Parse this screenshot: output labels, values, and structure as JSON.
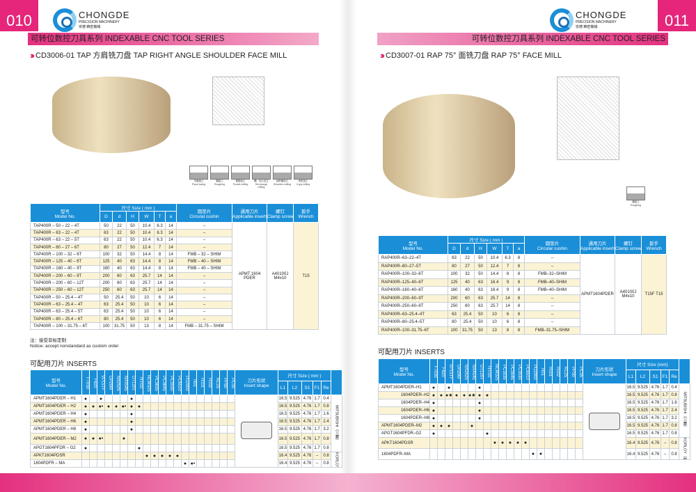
{
  "pages": [
    {
      "page_number": "010",
      "brand": "CHONGDE",
      "brand_sub": "PRECISION MACHINERY",
      "brand_cn": "崇德 精密機械",
      "series_title": "可转位数控刀具系列 INDEXABLE CNC TOOL SERIES",
      "product_title": "CD3006-01  TAP 方肩铣刀盘  TAP RIGHT ANGLE SHOULDER FACE MILL",
      "machining_icons": [
        {
          "cn": "平面加工",
          "en": "Plane facing"
        },
        {
          "cn": "粗加工",
          "en": "Roughing"
        },
        {
          "cn": "型腔加工",
          "en": "Pocket milling"
        },
        {
          "cn": "槽、切入加工",
          "en": "Slot plunge milling"
        },
        {
          "cn": "台阶面加工",
          "en": "Shoulder milling"
        },
        {
          "cn": "仿形加工",
          "en": "Copy milling"
        }
      ],
      "main_table": {
        "headers": {
          "model_cn": "型号",
          "model_en": "Model No.",
          "size": "尺寸 Size ( mm )",
          "cols": [
            "D",
            "d",
            "H",
            "W",
            "T",
            "a"
          ],
          "cushion_cn": "圆垫片",
          "cushion_en": "Circulal cushin",
          "inserts_cn": "通用刀片",
          "inserts_en": "Applicable inserts",
          "screw_cn": "螺钉",
          "screw_en": "Clamp screw",
          "wrench_cn": "扳手",
          "wrench_en": "Wrench"
        },
        "rows": [
          [
            "TAP400R – 50 – 22 – 4T",
            "50",
            "22",
            "50",
            "10.4",
            "6.3",
            "14",
            "–"
          ],
          [
            "TAP400R – 63 – 22 – 4T",
            "63",
            "22",
            "50",
            "10.4",
            "6.3",
            "14",
            "–"
          ],
          [
            "TAP400R – 63 – 22 – 5T",
            "63",
            "22",
            "50",
            "10.4",
            "6.3",
            "14",
            "–"
          ],
          [
            "TAP400R – 80 – 27 – 6T",
            "80",
            "27",
            "50",
            "12.4",
            "7",
            "14",
            "–"
          ],
          [
            "TAP400R – 100 – 32 – 6T",
            "100",
            "32",
            "50",
            "14.4",
            "8",
            "14",
            "FMB – 32 – SHIM"
          ],
          [
            "TAP400R – 125 – 40 – 6T",
            "125",
            "40",
            "63",
            "14.4",
            "8",
            "14",
            "FMB – 40 – SHIM"
          ],
          [
            "TAP400R – 160 – 40 – 9T",
            "160",
            "40",
            "63",
            "14.4",
            "8",
            "14",
            "FMB – 40 – SHIM"
          ],
          [
            "TAP400R – 200 – 60 – 9T",
            "200",
            "60",
            "63",
            "25.7",
            "14",
            "14",
            "–"
          ],
          [
            "TAP400R – 200 – 60 – 12T",
            "200",
            "60",
            "63",
            "25.7",
            "14",
            "14",
            "–"
          ],
          [
            "TAP400R – 250 – 60 – 12T",
            "250",
            "60",
            "63",
            "25.7",
            "14",
            "14",
            "–"
          ],
          [
            "TAP400R – 50 – 25.4 – 4T",
            "50",
            "25.4",
            "50",
            "10",
            "6",
            "14",
            "–"
          ],
          [
            "TAP400R – 63 – 25.4 – 4T",
            "63",
            "25.4",
            "50",
            "10",
            "6",
            "14",
            "–"
          ],
          [
            "TAP400R – 63 – 25.4 – 5T",
            "63",
            "25.4",
            "50",
            "10",
            "6",
            "14",
            "–"
          ],
          [
            "TAP400R – 80 – 25.4 – 6T",
            "80",
            "25.4",
            "50",
            "10",
            "6",
            "14",
            "–"
          ],
          [
            "TAP400R – 100 – 31.75 – 6T",
            "100",
            "31.75",
            "50",
            "13",
            "8",
            "14",
            "FMB – 31.75 – SHIM"
          ]
        ],
        "inserts": "APMT 1604 PDER",
        "screw": "A40100J M4x10",
        "wrench": "T15"
      },
      "notice_cn": "注：接受非标定制",
      "notice_en": "Notice: accept nonstandard as custom order",
      "inserts_title": "可配用刀片 INSERTS",
      "insert_table": {
        "headers": {
          "model_cn": "型号",
          "model_en": "Model No.",
          "shape_cn": "刀片形状",
          "shape_en": "Insert shape",
          "size": "尺寸 Size ( mm )",
          "cols": [
            "L1",
            "L2",
            "S1",
            "F1",
            "Re"
          ]
        },
        "grades": [
          "F7030",
          "F620",
          "VP15TF",
          "UP20M",
          "NX2525",
          "NX4545",
          "UT120T",
          "HTI10",
          "NCM325",
          "PC3635",
          "PC3645",
          "PC3530",
          "PC6510",
          "PD2000",
          "H01",
          "H101",
          "H102",
          "KC25",
          "PP30",
          "PC35"
        ],
        "rows": [
          {
            "model": "APMT1604PDER – H1",
            "marks": {
              "F7030": "●",
              "VP15TF": "●",
              "UT120T": "●"
            },
            "size": [
              "16.5",
              "9.525",
              "4.76",
              "1.7",
              "0.4"
            ]
          },
          {
            "model": "APMT1604PDER – H2",
            "marks": {
              "F7030": "●",
              "F620": "●",
              "VP15TF": "●•",
              "UP20M": "●",
              "NX2525": "●",
              "NX4545": "●•",
              "UT120T": "●",
              "HTI10": "●"
            },
            "size": [
              "16.5",
              "9.525",
              "4.76",
              "1.7",
              "0.8"
            ]
          },
          {
            "model": "APMT1604PDER – H4",
            "marks": {
              "F7030": "●",
              "UT120T": "●"
            },
            "size": [
              "16.5",
              "9.525",
              "4.76",
              "1.7",
              "1.6"
            ]
          },
          {
            "model": "APMT1604PDER – H6",
            "marks": {
              "F7030": "●",
              "UT120T": "●"
            },
            "size": [
              "16.5",
              "9.525",
              "4.76",
              "1.7",
              "2.4"
            ]
          },
          {
            "model": "APMT1604PDER – H8",
            "marks": {
              "F7030": "●",
              "UT120T": "●"
            },
            "size": [
              "16.5",
              "9.525",
              "4.76",
              "1.7",
              "3.2"
            ]
          },
          {
            "model": "APMT1604PDER – M2",
            "marks": {
              "F7030": "●",
              "F620": "●",
              "VP15TF": "●•",
              "NX4545": "●"
            },
            "size": [
              "16.5",
              "9.525",
              "4.76",
              "1.7",
              "0.8"
            ]
          },
          {
            "model": "APGT1604PFDR – G2",
            "marks": {
              "F7030": "●",
              "HTI10": "●"
            },
            "size": [
              "16.5",
              "9.525",
              "4.76",
              "1.7",
              "0.8"
            ]
          },
          {
            "model": "APKT1604PDSR",
            "marks": {
              "NCM325": "●",
              "PC3635": "●",
              "PC3645": "●",
              "PC3530": "●",
              "PC6510": "●"
            },
            "size": [
              "16.4",
              "9.525",
              "4.76",
              "–",
              "0.8"
            ]
          },
          {
            "model": "1604PDFR – MA",
            "marks": {
              "PD2000": "●",
              "H01": "●•"
            },
            "size": [
              "16.4",
              "9.525",
              "4.76",
              "–",
              "0.8"
            ]
          }
        ],
        "brands": [
          "MITSUBISHI（三菱）",
          "KORLOY（韩国）"
        ]
      }
    },
    {
      "page_number": "011",
      "brand": "CHONGDE",
      "brand_sub": "PRECISION MACHINERY",
      "brand_cn": "崇德 精密機械",
      "series_title": "可转位数控刀具系列 INDEXABLE CNC TOOL SERIES",
      "product_title": "CD3007-01  RAP  75°  面铣刀盘  RAP  75°   FACE MILL",
      "machining_icons": [
        {
          "cn": "粗加工",
          "en": "Roughing"
        }
      ],
      "main_table": {
        "headers": {
          "model_cn": "型号",
          "model_en": "Model No.",
          "size": "尺寸 Size ( mm )",
          "cols": [
            "D",
            "d",
            "H",
            "W",
            "T",
            "a"
          ],
          "cushion_cn": "圆垫片",
          "cushion_en": "Circular cushin",
          "inserts_cn": "通用刀片",
          "inserts_en": "Applicable inserts",
          "screw_cn": "螺钉",
          "screw_en": "Clamp screw",
          "wrench_cn": "扳手",
          "wrench_en": "Wrench"
        },
        "rows": [
          [
            "RAP400R–63–22–4T",
            "63",
            "22",
            "50",
            "10.4",
            "6.3",
            "8",
            "–"
          ],
          [
            "RAP400R–80–27–5T",
            "80",
            "27",
            "50",
            "12.4",
            "7",
            "8",
            "–"
          ],
          [
            "RAP400R–100–32–6T",
            "100",
            "32",
            "50",
            "14.4",
            "8",
            "8",
            "FMB–32–SHIM"
          ],
          [
            "RAP400R–125–40–6T",
            "125",
            "40",
            "63",
            "16.4",
            "9",
            "8",
            "FMB–40–SHIM"
          ],
          [
            "RAP400R–160–40–6T",
            "160",
            "40",
            "63",
            "16.4",
            "9",
            "8",
            "FMB–40–SHIM"
          ],
          [
            "RAP400R–200–60–9T",
            "200",
            "60",
            "63",
            "25.7",
            "14",
            "8",
            "–"
          ],
          [
            "RAP400R–250–60–9T",
            "250",
            "60",
            "63",
            "25.7",
            "14",
            "8",
            "–"
          ],
          [
            "RAP400R–63–25.4–4T",
            "63",
            "25.4",
            "50",
            "10",
            "6",
            "8",
            "–"
          ],
          [
            "RAP400R–80–25.4–5T",
            "80",
            "25.4",
            "50",
            "10",
            "6",
            "8",
            "–"
          ],
          [
            "RAP400R–100–31.75–6T",
            "100",
            "31.75",
            "50",
            "13",
            "8",
            "8",
            "FMB–31.75–SHIM"
          ]
        ],
        "inserts": "APMT1604PDER",
        "screw": "A40100J M4x10",
        "wrench": "T15F T15"
      },
      "inserts_title": "可配用刀片 INSERTS",
      "insert_table": {
        "headers": {
          "model_cn": "型号",
          "model_en": "Model No.",
          "shape_cn": "刀片形状",
          "shape_en": "Insert shape",
          "size": "尺寸 Size (mm)",
          "cols": [
            "L1",
            "L2",
            "S1",
            "F1",
            "Re"
          ]
        },
        "grades": [
          "F7030",
          "F620",
          "VP15TF",
          "UP20M",
          "NX2525",
          "NX4545",
          "UT120T",
          "HTI10",
          "NCM325",
          "PC3535",
          "PC3545",
          "PC3530",
          "PC6510",
          "PD2000",
          "H01",
          "H101",
          "H102",
          "KC25",
          "PP30",
          "PC35"
        ],
        "rows": [
          {
            "model": "APMT1604PDER–H1",
            "marks": {
              "F7030": "●",
              "VP15TF": "●",
              "UT120T": "●"
            },
            "size": [
              "16.5",
              "9.525",
              "4.76",
              "1.7",
              "0.4"
            ]
          },
          {
            "model": "1604PDER–H2",
            "marks": {
              "F7030": "●",
              "F620": "●",
              "VP15TF": "●★",
              "UP20M": "●",
              "NX2525": "●",
              "NX4545": "●★",
              "UT120T": "●",
              "HTI10": "●"
            },
            "size": [
              "16.5",
              "9.525",
              "4.76",
              "1.7",
              "0.8"
            ]
          },
          {
            "model": "1604PDER–H4",
            "marks": {
              "F7030": "●",
              "UT120T": "●"
            },
            "size": [
              "16.5",
              "9.525",
              "4.76",
              "1.7",
              "1.6"
            ]
          },
          {
            "model": "1604PDER–H6",
            "marks": {
              "F7030": "●",
              "UT120T": "●"
            },
            "size": [
              "16.5",
              "9.525",
              "4.76",
              "1.7",
              "2.4"
            ]
          },
          {
            "model": "1604PDER–H8",
            "marks": {
              "F7030": "●",
              "UT120T": "●"
            },
            "size": [
              "16.5",
              "9.525",
              "4.76",
              "1.7",
              "3.2"
            ]
          },
          {
            "model": "APMT1604PDER–M2",
            "marks": {
              "F7030": "●",
              "F620": "●",
              "VP15TF": "●",
              "NX4545": "●"
            },
            "size": [
              "16.5",
              "9.525",
              "4.76",
              "1.7",
              "0.8"
            ]
          },
          {
            "model": "APGT1604PFDR–G2",
            "marks": {
              "F7030": "●",
              "HTI10": "●"
            },
            "size": [
              "16.5",
              "9.525",
              "4.76",
              "1.7",
              "0.8"
            ]
          },
          {
            "model": "APKT1604PDSR",
            "marks": {
              "NCM325": "●",
              "PC3535": "●",
              "PC3545": "●",
              "PC3530": "●",
              "PC6510": "●"
            },
            "size": [
              "16.4",
              "9.525",
              "4.76",
              "–",
              "0.8"
            ]
          },
          {
            "model": "1604PDFR–MA",
            "marks": {
              "PD2000": "●",
              "H01": "●"
            },
            "size": [
              "16.4",
              "9.525",
              "4.76",
              "–",
              "0.8"
            ]
          }
        ],
        "brands": [
          "MITSUBISHI（三菱）",
          "KORLOY（韩国）"
        ]
      }
    }
  ],
  "colors": {
    "accent": "#e5267a",
    "table_header": "#1a8fd8",
    "row_alt": "#fbf3d4"
  }
}
